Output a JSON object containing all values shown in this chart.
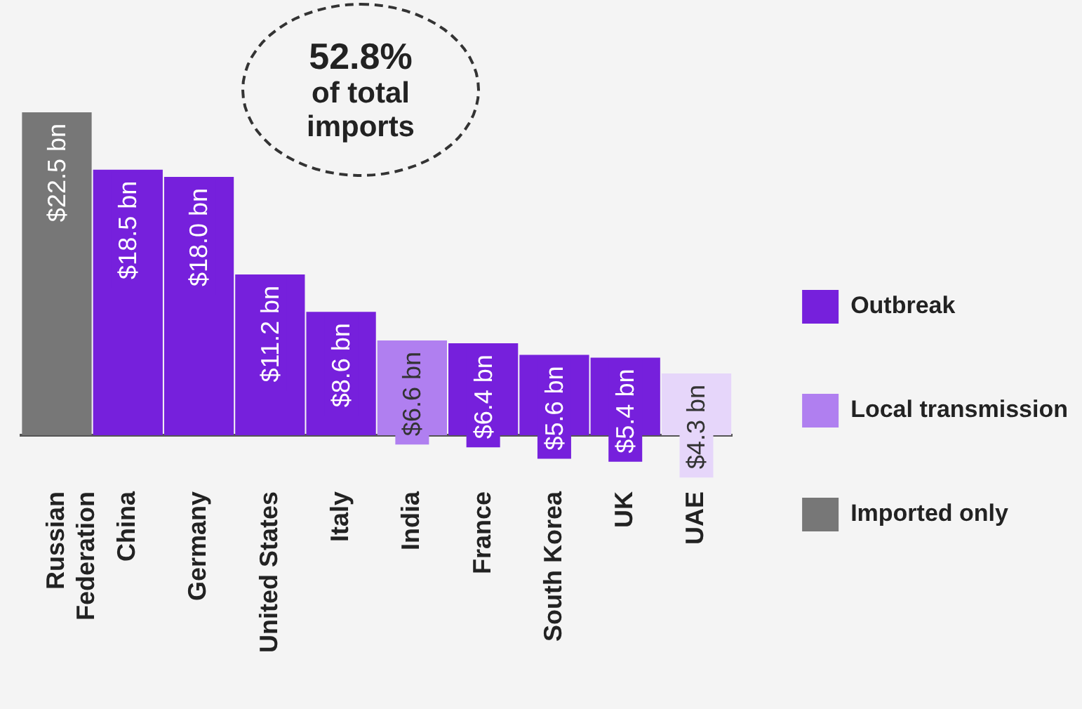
{
  "chart_data": {
    "type": "bar",
    "categories": [
      "Russian Federation",
      "China",
      "Germany",
      "United States",
      "Italy",
      "India",
      "France",
      "South Korea",
      "UK",
      "UAE"
    ],
    "series": [
      {
        "name": "Outbreak",
        "color": "#7620dc",
        "values": [
          null,
          18.5,
          18.0,
          11.2,
          8.6,
          null,
          6.4,
          5.6,
          5.4,
          null
        ],
        "value_labels": [
          null,
          "$18.5 bn",
          "$18.0 bn",
          "$11.2 bn",
          "$8.6 bn",
          null,
          "$6.4 bn",
          "$5.6 bn",
          "$5.4 bn",
          null
        ]
      },
      {
        "name": "Local transmission",
        "color": "#b07ff0",
        "values": [
          null,
          null,
          null,
          null,
          null,
          6.6,
          null,
          null,
          null,
          null
        ],
        "value_labels": [
          null,
          null,
          null,
          null,
          null,
          "$6.6 bn",
          null,
          null,
          null,
          null
        ]
      },
      {
        "name": "Imported only",
        "color": "#777777",
        "values": [
          22.5,
          null,
          null,
          null,
          null,
          null,
          null,
          null,
          null,
          null
        ],
        "value_labels": [
          "$22.5 bn",
          null,
          null,
          null,
          null,
          null,
          null,
          null,
          null,
          null
        ]
      },
      {
        "color": "#e6d6fa",
        "values": [
          null,
          null,
          null,
          null,
          null,
          null,
          null,
          null,
          null,
          4.3
        ],
        "value_labels": [
          null,
          null,
          null,
          null,
          null,
          null,
          null,
          null,
          null,
          "$4.3 bn"
        ]
      }
    ],
    "annotations": [
      "52.8%\nof total imports"
    ],
    "legend": "right",
    "grid": false
  }
}
